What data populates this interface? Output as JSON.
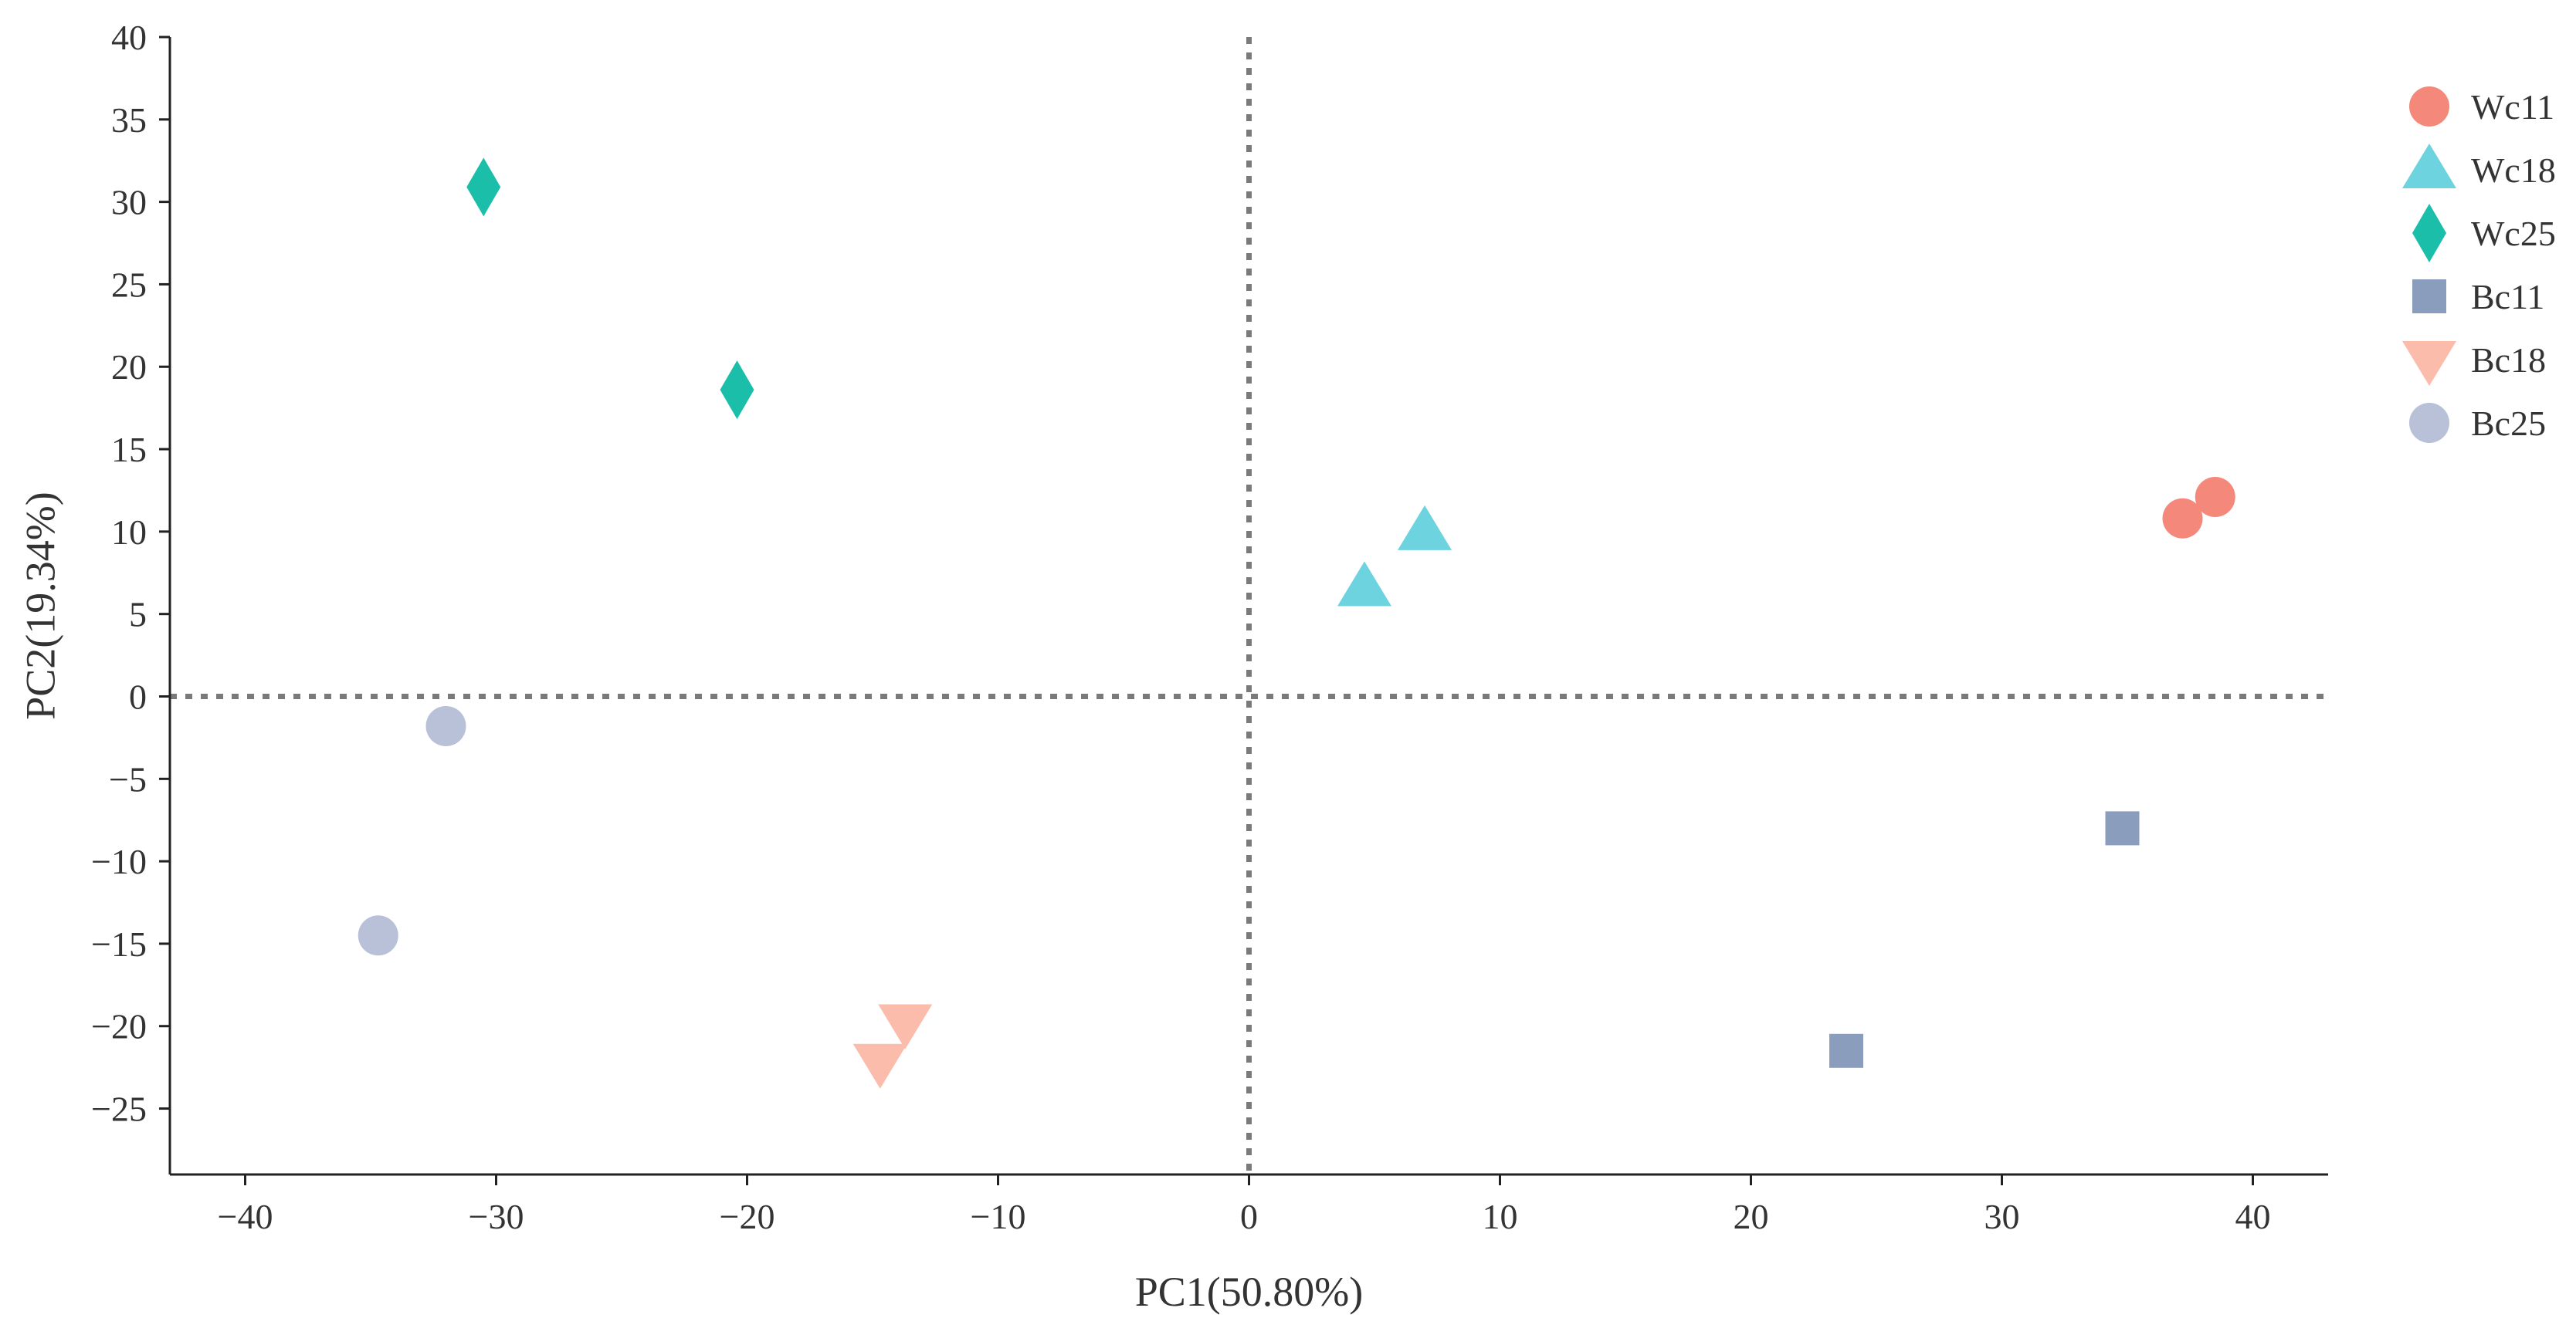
{
  "chart_data": {
    "type": "scatter",
    "title": "",
    "xlabel": "PC1(50.80%)",
    "ylabel": "PC2(19.34%)",
    "xlim": [
      -43,
      43
    ],
    "ylim": [
      -29,
      40
    ],
    "xticks": [
      -40,
      -30,
      -20,
      -10,
      0,
      10,
      20,
      30,
      40
    ],
    "yticks": [
      40,
      35,
      30,
      25,
      20,
      15,
      10,
      5,
      0,
      -5,
      -10,
      -15,
      -20,
      -25
    ],
    "xtick_labels": [
      "−40",
      "−30",
      "−20",
      "−10",
      "0",
      "10",
      "20",
      "30",
      "40"
    ],
    "ytick_labels": [
      "40",
      "35",
      "30",
      "25",
      "20",
      "15",
      "10",
      "5",
      "0",
      "−5",
      "−10",
      "−15",
      "−20",
      "−25"
    ],
    "reference_lines": {
      "x": 0,
      "y": 0
    },
    "grid": false,
    "legend_position": "top-right",
    "series": [
      {
        "name": "Wc11",
        "marker": "circle",
        "color": "#f4897b",
        "points": [
          [
            37.2,
            10.8
          ],
          [
            38.5,
            12.1
          ]
        ]
      },
      {
        "name": "Wc18",
        "marker": "triangle-up",
        "color": "#6dd3df",
        "points": [
          [
            4.6,
            6.6
          ],
          [
            7.0,
            10.0
          ]
        ]
      },
      {
        "name": "Wc25",
        "marker": "diamond",
        "color": "#1bbfa9",
        "points": [
          [
            -30.5,
            30.9
          ],
          [
            -20.4,
            18.6
          ]
        ]
      },
      {
        "name": "Bc11",
        "marker": "square",
        "color": "#8a9dbd",
        "points": [
          [
            34.8,
            -8.0
          ],
          [
            23.8,
            -21.5
          ]
        ]
      },
      {
        "name": "Bc18",
        "marker": "triangle-down",
        "color": "#fbbcab",
        "points": [
          [
            -13.7,
            -19.8
          ],
          [
            -14.7,
            -22.2
          ]
        ]
      },
      {
        "name": "Bc25",
        "marker": "circle",
        "color": "#b9c1d8",
        "points": [
          [
            -32.0,
            -1.8
          ],
          [
            -34.7,
            -14.5
          ]
        ]
      }
    ]
  }
}
